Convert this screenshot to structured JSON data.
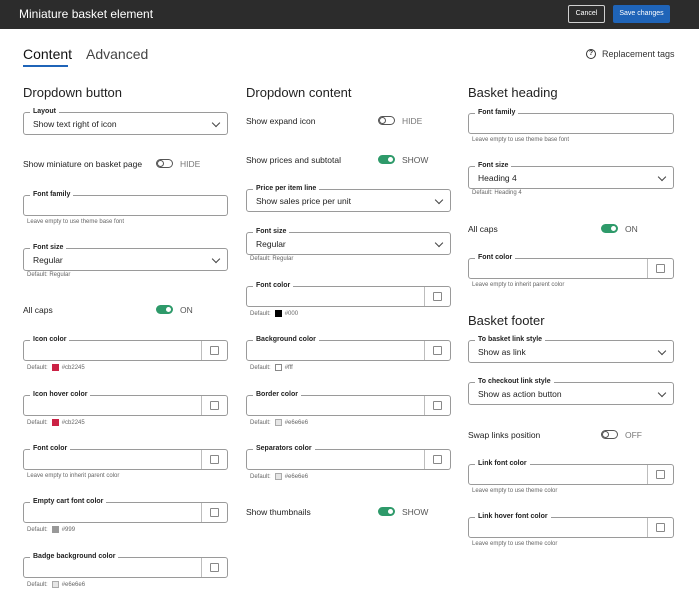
{
  "header": {
    "title": "Miniature basket element",
    "cancel_label": "Cancel",
    "save_label": "Save changes"
  },
  "tabs": {
    "content": "Content",
    "advanced": "Advanced",
    "replacement_tags": "Replacement tags"
  },
  "col1": {
    "heading": "Dropdown button",
    "layout": {
      "label": "Layout",
      "value": "Show text right of icon"
    },
    "show_miniature": {
      "label": "Show miniature on basket page",
      "state": "HIDE"
    },
    "font_family": {
      "label": "Font family",
      "help": "Leave empty to use theme base font"
    },
    "font_size": {
      "label": "Font size",
      "value": "Regular",
      "help": "Default: Regular"
    },
    "all_caps": {
      "label": "All caps",
      "state": "ON"
    },
    "icon_color": {
      "label": "Icon color",
      "default_prefix": "Default:",
      "default_value": "#cb2245",
      "chip": "#cb2245"
    },
    "icon_hover_color": {
      "label": "Icon hover color",
      "default_prefix": "Default:",
      "default_value": "#cb2245",
      "chip": "#cb2245"
    },
    "font_color": {
      "label": "Font color",
      "help": "Leave empty to inherit parent color"
    },
    "empty_cart_font_color": {
      "label": "Empty cart font color",
      "default_prefix": "Default:",
      "default_value": "#999",
      "chip": "#999999"
    },
    "badge_bg_color": {
      "label": "Badge background color",
      "default_prefix": "Default:",
      "default_value": "#e6e6e6",
      "chip": "#e6e6e6"
    }
  },
  "col2": {
    "heading": "Dropdown content",
    "show_expand": {
      "label": "Show expand icon",
      "state": "HIDE"
    },
    "show_prices": {
      "label": "Show prices and subtotal",
      "state": "SHOW"
    },
    "price_per_item": {
      "label": "Price per item line",
      "value": "Show sales price per unit"
    },
    "font_size": {
      "label": "Font size",
      "value": "Regular",
      "help": "Default: Regular"
    },
    "font_color": {
      "label": "Font color",
      "default_prefix": "Default:",
      "default_value": "#000",
      "chip": "#000000"
    },
    "background_color": {
      "label": "Background color",
      "default_prefix": "Default:",
      "default_value": "#fff",
      "chip": "#ffffff"
    },
    "border_color": {
      "label": "Border color",
      "default_prefix": "Default:",
      "default_value": "#e6e6e6",
      "chip": "#e6e6e6"
    },
    "separators_color": {
      "label": "Separators color",
      "default_prefix": "Default:",
      "default_value": "#e6e6e6",
      "chip": "#e6e6e6"
    },
    "show_thumbnails": {
      "label": "Show thumbnails",
      "state": "SHOW"
    }
  },
  "col3": {
    "heading": "Basket heading",
    "font_family": {
      "label": "Font family",
      "help": "Leave empty to use theme base font"
    },
    "font_size": {
      "label": "Font size",
      "value": "Heading 4",
      "help": "Default: Heading 4"
    },
    "all_caps": {
      "label": "All caps",
      "state": "ON"
    },
    "font_color": {
      "label": "Font color",
      "help": "Leave empty to inherit parent color"
    },
    "footer_heading": "Basket footer",
    "to_basket": {
      "label": "To basket link style",
      "value": "Show as link"
    },
    "to_checkout": {
      "label": "To checkout link style",
      "value": "Show as action button"
    },
    "swap_links": {
      "label": "Swap links position",
      "state": "OFF"
    },
    "link_font_color": {
      "label": "Link font color",
      "help": "Leave empty to use theme color"
    },
    "link_hover_font_color": {
      "label": "Link hover font color",
      "help": "Leave empty to use theme color"
    }
  },
  "colors": {
    "accent": "#1f64b8",
    "toggle_on": "#2e9a6a",
    "topbar": "#2c2c2c"
  }
}
